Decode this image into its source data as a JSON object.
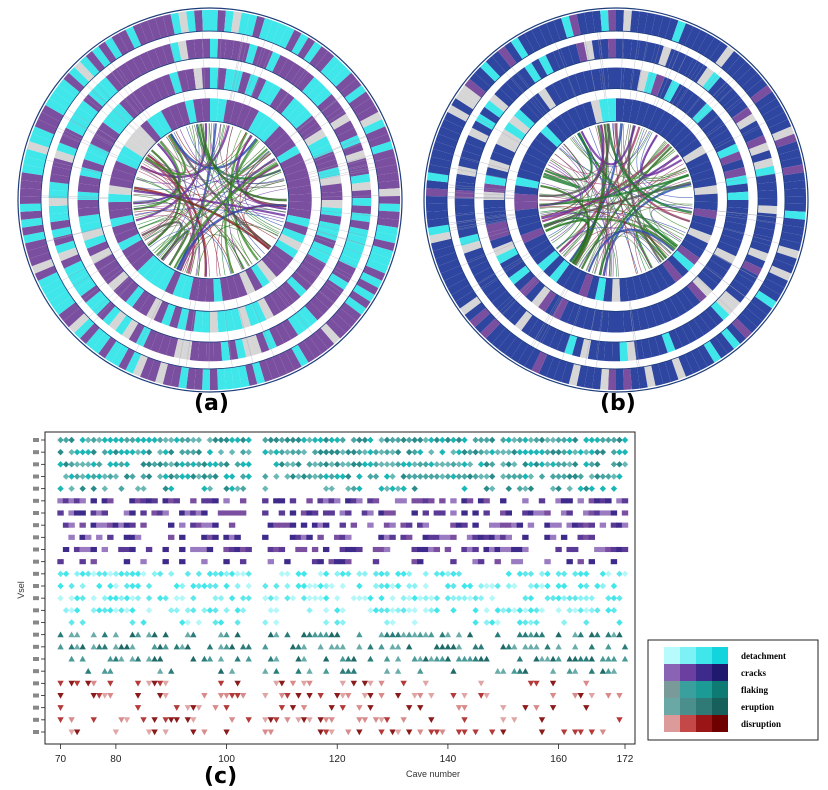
{
  "panels": {
    "a": {
      "label": "(a)"
    },
    "b": {
      "label": "(b)"
    },
    "c": {
      "label": "(c)"
    }
  },
  "colors": {
    "purple": "#7b4fa0",
    "cyan": "#3fe6ea",
    "blue": "#2e46a0",
    "gray": "#d6d6d6",
    "teal_dark": "#2a7d7a",
    "teal_mid": "#4aa6a3",
    "red_dark": "#8b1a1a",
    "red_light": "#d98b8b"
  },
  "chart_data": {
    "type": "scatter",
    "title": "",
    "xlabel": "Cave number",
    "ylabel": "Vsel",
    "xlim": [
      69,
      172
    ],
    "x_ticks": [
      70,
      80,
      100,
      120,
      140,
      160,
      172
    ],
    "x_tick_labels": [
      "70",
      "80",
      "100",
      "120",
      "140",
      "160",
      "172"
    ],
    "rows": 25,
    "categories_by_row": [
      {
        "category": "detachment",
        "rows": [
          1,
          5
        ]
      },
      {
        "category": "cracks",
        "rows": [
          6,
          11
        ]
      },
      {
        "category": "flaking",
        "rows": [
          12,
          16
        ]
      },
      {
        "category": "eruption",
        "rows": [
          17,
          20
        ]
      },
      {
        "category": "disruption",
        "rows": [
          21,
          25
        ]
      }
    ],
    "legend": {
      "placement": "bottom-right",
      "entries": [
        "detachment",
        "cracks",
        "flaking",
        "eruption",
        "disruption"
      ],
      "swatches": [
        [
          "#b8fbfd",
          "#7df2f6",
          "#3fe6ea",
          "#12d4dc"
        ],
        [
          "#8a63b5",
          "#6a3fa0",
          "#3e2a8a",
          "#1f1a6e"
        ],
        [
          "#7a9a9a",
          "#3aa09d",
          "#1b9a96",
          "#0d7a74"
        ],
        [
          "#6aa8a6",
          "#4a8f8c",
          "#2f7a77",
          "#175f5b"
        ],
        [
          "#dd9a9a",
          "#c44848",
          "#9a1515",
          "#6e0000"
        ]
      ]
    }
  }
}
